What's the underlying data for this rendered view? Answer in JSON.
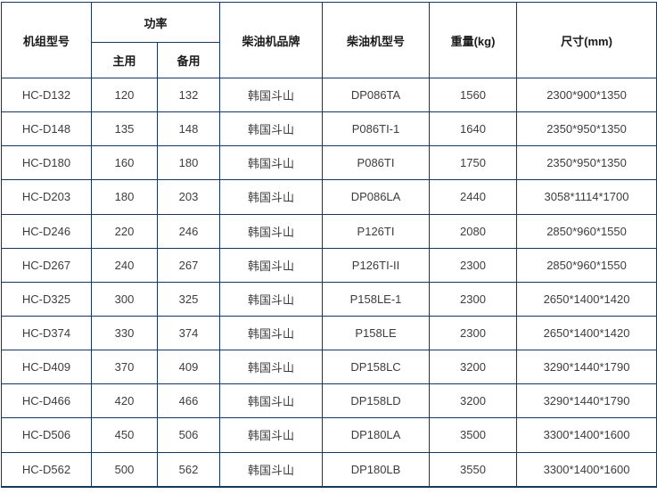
{
  "colors": {
    "border": "#17375d",
    "header_text": "#1a1a1a",
    "body_text": "#3d3d3d",
    "background": "#ffffff"
  },
  "table": {
    "headers": {
      "model": "机组型号",
      "power_group": "功率",
      "power_prime": "主用",
      "power_standby": "备用",
      "engine_brand": "柴油机品牌",
      "engine_model": "柴油机型号",
      "weight": "重量(kg)",
      "dimensions": "尺寸(mm)"
    },
    "rows": [
      [
        "HC-D132",
        "120",
        "132",
        "韩国斗山",
        "DP086TA",
        "1560",
        "2300*900*1350"
      ],
      [
        "HC-D148",
        "135",
        "148",
        "韩国斗山",
        "P086TI-1",
        "1640",
        "2350*950*1350"
      ],
      [
        "HC-D180",
        "160",
        "180",
        "韩国斗山",
        "P086TI",
        "1750",
        "2350*950*1350"
      ],
      [
        "HC-D203",
        "180",
        "203",
        "韩国斗山",
        "DP086LA",
        "2440",
        "3058*1114*1700"
      ],
      [
        "HC-D246",
        "220",
        "246",
        "韩国斗山",
        "P126TI",
        "2080",
        "2850*960*1550"
      ],
      [
        "HC-D267",
        "240",
        "267",
        "韩国斗山",
        "P126TI-II",
        "2300",
        "2850*960*1550"
      ],
      [
        "HC-D325",
        "300",
        "325",
        "韩国斗山",
        "P158LE-1",
        "2300",
        "2650*1400*1420"
      ],
      [
        "HC-D374",
        "330",
        "374",
        "韩国斗山",
        "P158LE",
        "2300",
        "2650*1400*1420"
      ],
      [
        "HC-D409",
        "370",
        "409",
        "韩国斗山",
        "DP158LC",
        "3200",
        "3290*1440*1790"
      ],
      [
        "HC-D466",
        "420",
        "466",
        "韩国斗山",
        "DP158LD",
        "3200",
        "3290*1440*1790"
      ],
      [
        "HC-D506",
        "450",
        "506",
        "韩国斗山",
        "DP180LA",
        "3500",
        "3300*1400*1600"
      ],
      [
        "HC-D562",
        "500",
        "562",
        "韩国斗山",
        "DP180LB",
        "3550",
        "3300*1400*1600"
      ]
    ],
    "column_keys": [
      "model",
      "power-prime",
      "power-standby",
      "engine-brand",
      "engine-model",
      "weight",
      "dimensions"
    ]
  }
}
